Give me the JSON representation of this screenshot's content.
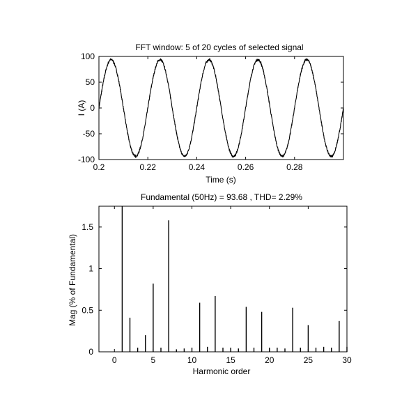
{
  "chart_data": [
    {
      "type": "line",
      "title": "FFT window: 5 of 20 cycles of selected signal",
      "xlabel": "Time (s)",
      "ylabel": "I (A)",
      "xlim": [
        0.2,
        0.3
      ],
      "ylim": [
        -100,
        100
      ],
      "xticks": [
        "0.2",
        "0.22",
        "0.24",
        "0.26",
        "0.28"
      ],
      "yticks": [
        "-100",
        "-50",
        "0",
        "50",
        "100"
      ],
      "grid": false,
      "signal": {
        "amplitude": 93.68,
        "frequency_hz": 50,
        "phase_deg": 0
      }
    },
    {
      "type": "bar",
      "title": "Fundamental (50Hz) = 93.68 , THD= 2.29%",
      "xlabel": "Harmonic order",
      "ylabel": "Mag (% of Fundamental)",
      "xlim": [
        -2,
        30
      ],
      "ylim": [
        0,
        1.75
      ],
      "xticks": [
        "0",
        "5",
        "10",
        "15",
        "20",
        "25",
        "30"
      ],
      "yticks": [
        "0",
        "0.5",
        "1",
        "1.5"
      ],
      "grid": false,
      "harmonics": [
        {
          "order": 1,
          "value": 1.75
        },
        {
          "order": 2,
          "value": 0.41
        },
        {
          "order": 3,
          "value": 0.05
        },
        {
          "order": 4,
          "value": 0.2
        },
        {
          "order": 5,
          "value": 0.82
        },
        {
          "order": 6,
          "value": 0.05
        },
        {
          "order": 7,
          "value": 1.58
        },
        {
          "order": 8,
          "value": 0.03
        },
        {
          "order": 9,
          "value": 0.04
        },
        {
          "order": 10,
          "value": 0.05
        },
        {
          "order": 11,
          "value": 0.59
        },
        {
          "order": 12,
          "value": 0.06
        },
        {
          "order": 13,
          "value": 0.67
        },
        {
          "order": 14,
          "value": 0.05
        },
        {
          "order": 15,
          "value": 0.05
        },
        {
          "order": 16,
          "value": 0.04
        },
        {
          "order": 17,
          "value": 0.54
        },
        {
          "order": 18,
          "value": 0.05
        },
        {
          "order": 19,
          "value": 0.48
        },
        {
          "order": 20,
          "value": 0.05
        },
        {
          "order": 21,
          "value": 0.05
        },
        {
          "order": 22,
          "value": 0.04
        },
        {
          "order": 23,
          "value": 0.53
        },
        {
          "order": 24,
          "value": 0.05
        },
        {
          "order": 25,
          "value": 0.32
        },
        {
          "order": 26,
          "value": 0.05
        },
        {
          "order": 27,
          "value": 0.06
        },
        {
          "order": 28,
          "value": 0.05
        },
        {
          "order": 29,
          "value": 0.37
        },
        {
          "order": 30,
          "value": 0.06
        }
      ]
    }
  ]
}
